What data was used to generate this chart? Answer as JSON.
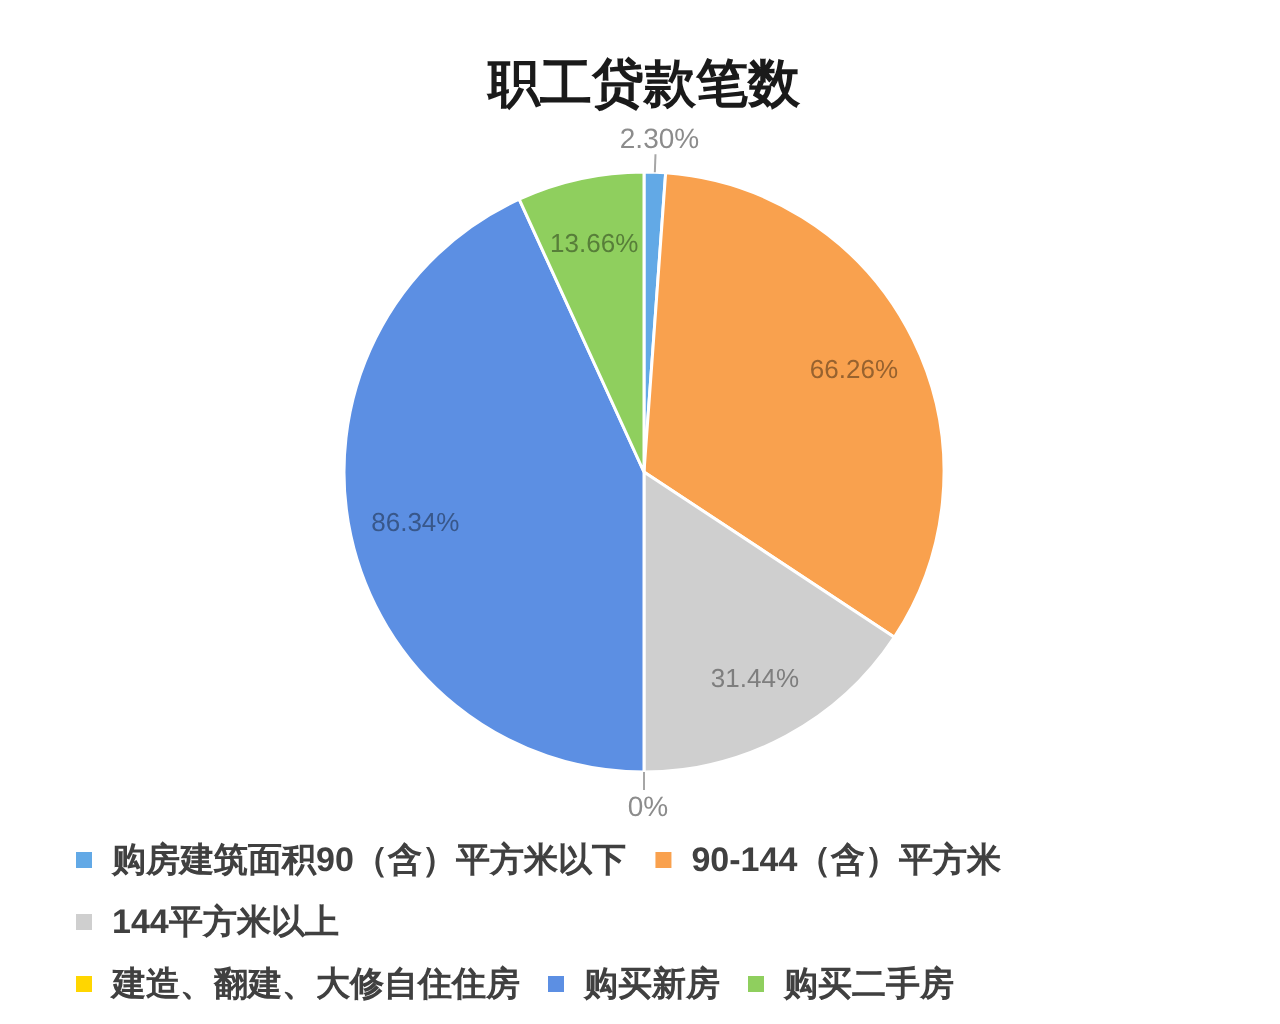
{
  "chart_data": {
    "type": "pie",
    "title": "职工贷款笔数",
    "categories": [
      "购房建筑面积90（含）平方米以下",
      "90-144（含）平方米",
      "144平方米以上",
      "建造、翻建、大修自住住房",
      "购买新房",
      "购买二手房"
    ],
    "values": [
      2.3,
      66.26,
      31.44,
      0,
      86.34,
      13.66
    ],
    "colors": [
      "#62a9e6",
      "#f9a14e",
      "#cfcfcf",
      "#ffd600",
      "#5c8fe3",
      "#8fcf5e"
    ],
    "value_labels": [
      "2.30%",
      "66.26%",
      "31.44%",
      "0%",
      "86.34%",
      "13.66%"
    ],
    "legend": "bottom"
  }
}
